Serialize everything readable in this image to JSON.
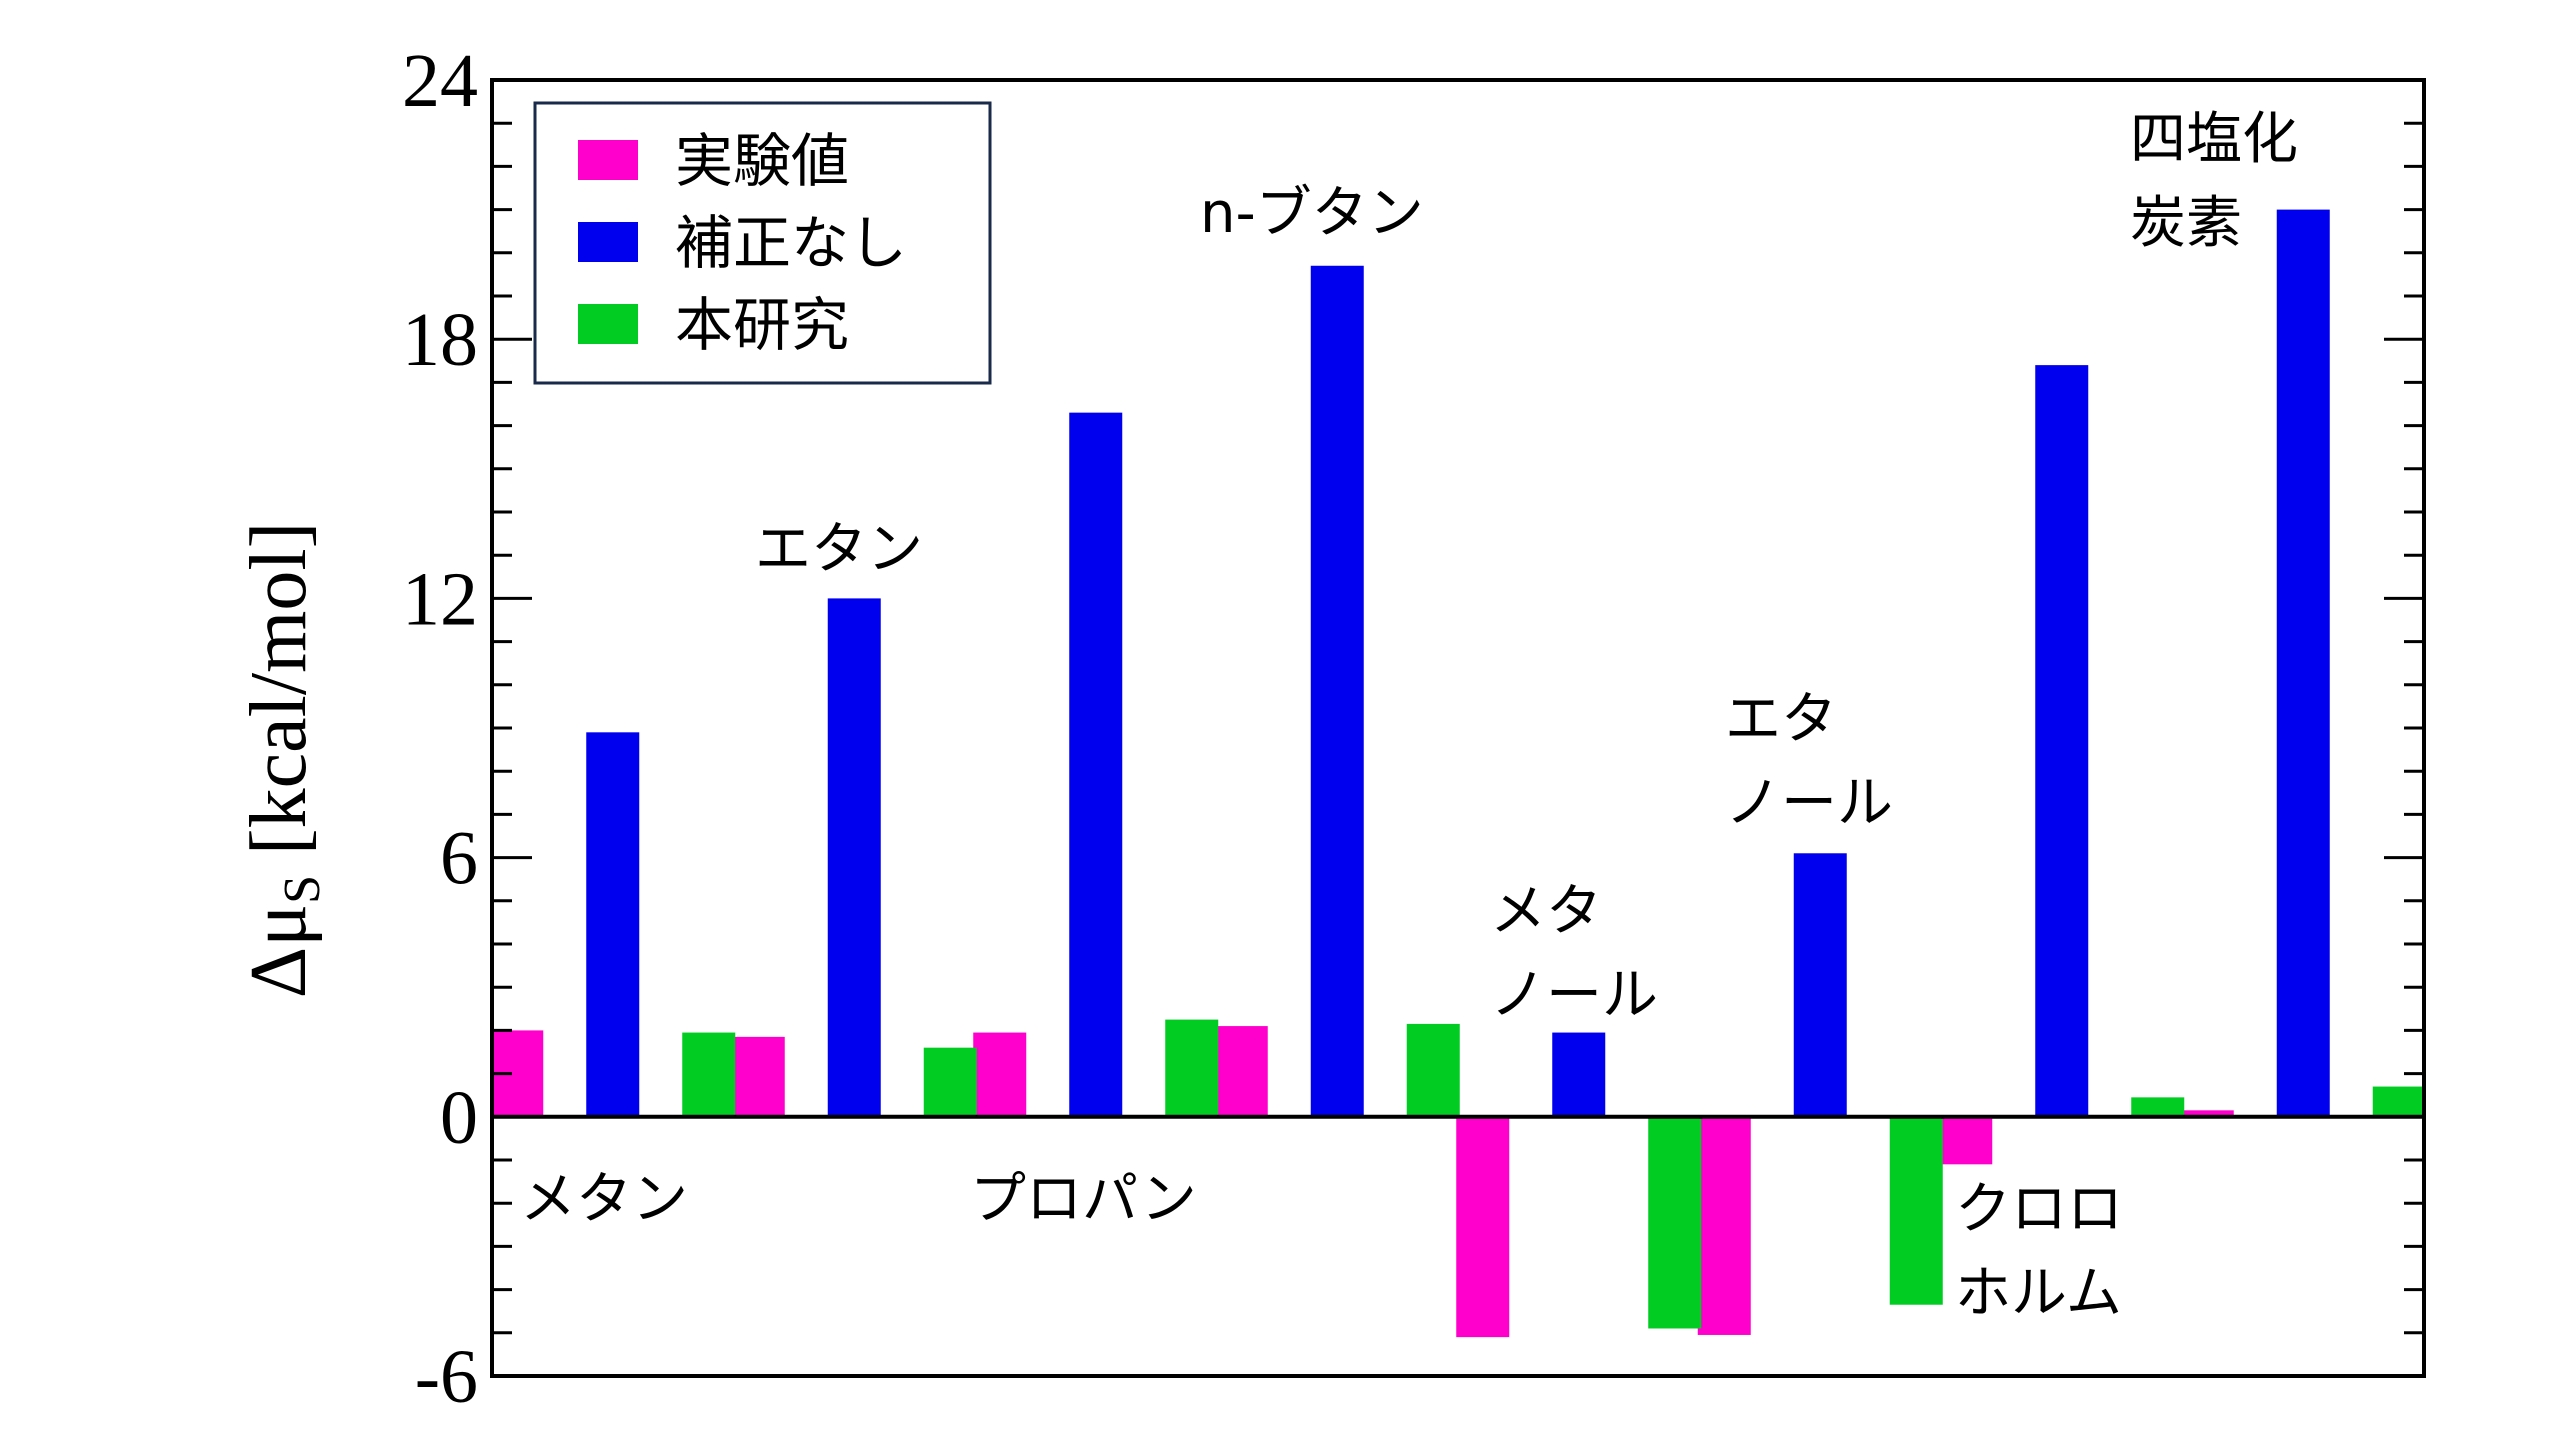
{
  "chart_data": {
    "type": "bar",
    "categories": [
      [
        "メタン"
      ],
      [
        "エタン"
      ],
      [
        "プロパン"
      ],
      [
        "n-ブタン"
      ],
      [
        "メタ",
        "ノール"
      ],
      [
        "エタ",
        "ノール"
      ],
      [
        "クロロ",
        "ホルム"
      ],
      [
        "四塩化",
        "炭素"
      ]
    ],
    "series": [
      {
        "name": "実験値",
        "color": "#ff00cc",
        "values": [
          2.0,
          1.85,
          1.95,
          2.1,
          -5.1,
          -5.05,
          -1.1,
          0.15
        ]
      },
      {
        "name": "補正なし",
        "color": "#0000ee",
        "values": [
          8.9,
          12.0,
          16.3,
          19.7,
          1.95,
          6.1,
          17.4,
          21.0
        ]
      },
      {
        "name": "本研究",
        "color": "#00cc22",
        "values": [
          1.95,
          1.6,
          2.25,
          2.15,
          -4.9,
          -4.35,
          0.45,
          0.7
        ]
      }
    ],
    "ylabel_main": "Δμ",
    "ylabel_sub": "S",
    "ylabel_unit": " [kcal/mol]",
    "ylim": [
      -6,
      24
    ],
    "yticks": [
      "-6",
      "0",
      "6",
      "12",
      "18",
      "24"
    ],
    "legend": "top-left"
  }
}
